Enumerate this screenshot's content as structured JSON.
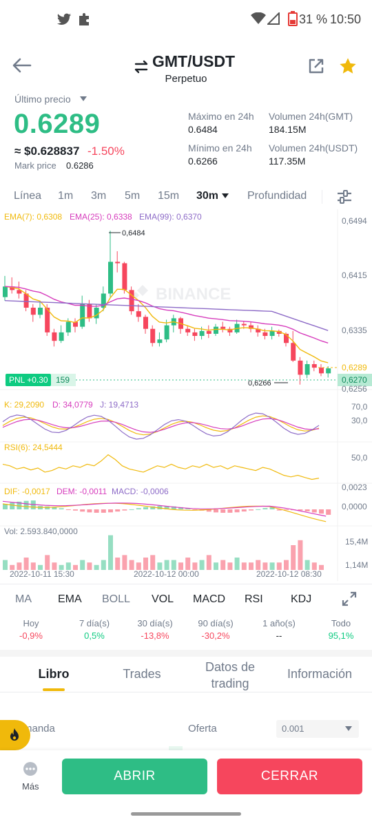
{
  "status": {
    "battery": "31 %",
    "time": "10:50"
  },
  "header": {
    "pair": "GMT/USDT",
    "sub": "Perpetuo"
  },
  "price": {
    "last_label": "Último precio",
    "last": "0.6289",
    "usd": "≈ $0.628837",
    "change": "-1.50%",
    "mark_label": "Mark price",
    "mark": "0.6286",
    "high_label": "Máximo en 24h",
    "high": "0.6484",
    "low_label": "Mínimo en 24h",
    "low": "0.6266",
    "vol_base_label": "Volumen 24h(GMT)",
    "vol_base": "184.15M",
    "vol_quote_label": "Volumen 24h(USDT)",
    "vol_quote": "117.35M"
  },
  "timeframes": [
    "Línea",
    "1m",
    "3m",
    "5m",
    "15m",
    "30m",
    "Profundidad"
  ],
  "chart": {
    "ema7": "EMA(7): 0,6308",
    "ema25": "EMA(25): 0,6338",
    "ema99": "EMA(99): 0,6370",
    "y_labels": [
      "0,6494",
      "0,6415",
      "0,6335",
      "0,6289",
      "0,6270",
      "0,6256"
    ],
    "high_marker": "0,6484",
    "low_marker": "0,6266",
    "pnl": "PNL +0.30",
    "pnl_qty": "159",
    "watermark": "BINANCE",
    "kdj_k": "K: 29,2090",
    "kdj_d": "D: 34,0779",
    "kdj_j": "J: 19,4713",
    "kdj_y": [
      "70,0",
      "30,0"
    ],
    "rsi": "RSI(6): 24,5444",
    "rsi_y": "50,0",
    "dif": "DIF: -0,0017",
    "dem": "DEM: -0,0011",
    "macd": "MACD: -0,0006",
    "macd_y": [
      "0,0023",
      "0,0000"
    ],
    "vol": "Vol: 2.593.840,0000",
    "vol_y": [
      "15,4M",
      "1,14M"
    ],
    "x_labels": [
      "2022-10-11 15:30",
      "2022-10-12 00:00",
      "2022-10-12 08:30"
    ],
    "colors": {
      "up": "#2ebd85",
      "down": "#f6465d",
      "ema7": "#f0b90b",
      "ema25": "#d63bbc",
      "ema99": "#8d6bc7"
    }
  },
  "indicators": [
    "MA",
    "EMA",
    "BOLL",
    "VOL",
    "MACD",
    "RSI",
    "KDJ"
  ],
  "performance": [
    {
      "label": "Hoy",
      "value": "-0,9%"
    },
    {
      "label": "7 día(s)",
      "value": "0,5%"
    },
    {
      "label": "30 día(s)",
      "value": "-13,8%"
    },
    {
      "label": "90 día(s)",
      "value": "-30,2%"
    },
    {
      "label": "1 año(s)",
      "value": "--"
    },
    {
      "label": "Todo",
      "value": "95,1%"
    }
  ],
  "book_tabs": [
    "Libro",
    "Trades",
    "Datos de trading",
    "Información"
  ],
  "book": {
    "bid_label": "manda",
    "ask_label": "Oferta",
    "precision": "0.001"
  },
  "bottom": {
    "more": "Más",
    "open": "ABRIR",
    "close": "CERRAR"
  }
}
